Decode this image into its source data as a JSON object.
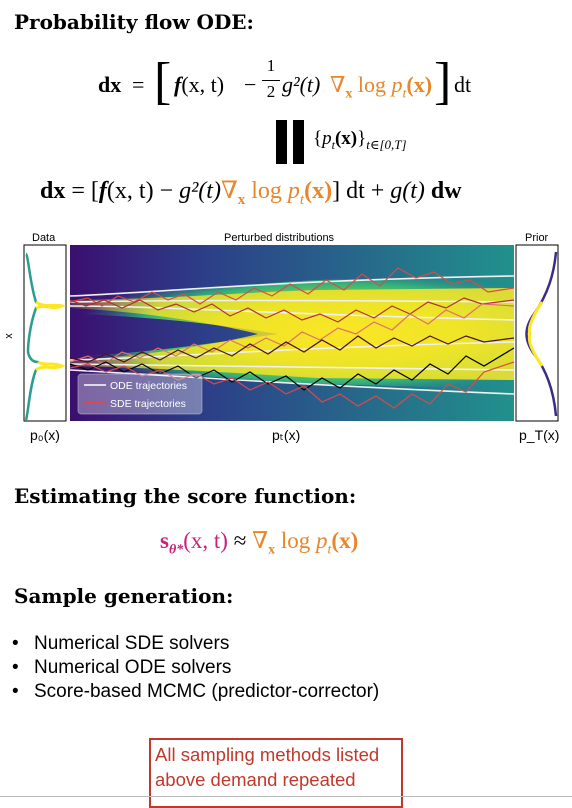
{
  "heading_ode": "Probability flow ODE:",
  "eq1": {
    "lhs": "dx",
    "eq": "=",
    "f": "f",
    "args": "(x, t)",
    "minus": "−",
    "half_num": "1",
    "half_den": "2",
    "g2": "g²(t)",
    "grad": "∇",
    "grad_sub": "x",
    "log": " log ",
    "p": "p",
    "p_sub": "t",
    "p_arg": "(x)",
    "dt": "dt"
  },
  "set_label": {
    "open": "{",
    "p": "p",
    "sub": "t",
    "arg": "(x)",
    "close": "}",
    "range": "t∈[0,T]"
  },
  "eq2": {
    "lhs": "dx",
    "eq": "=",
    "f": "f",
    "args": "(x, t)",
    "minus": "−",
    "g2": "g²(t)",
    "grad": "∇",
    "grad_sub": "x",
    "log": " log ",
    "p": "p",
    "p_sub": "t",
    "p_arg": "(x)",
    "dt": "dt +",
    "g": "g(t)",
    "dw": "dw"
  },
  "figure": {
    "label_data": "Data",
    "label_perturbed": "Perturbed distributions",
    "label_prior": "Prior",
    "axis_x": "x",
    "legend": [
      "ODE trajectories",
      "SDE trajectories"
    ],
    "legend_colors": [
      "#dcdcdc",
      "#d94a4a"
    ],
    "caption_p0": "p₀(x)",
    "caption_pt": "pₜ(x)",
    "caption_pT": "p_T(x)"
  },
  "heading_score": "Estimating the score function:",
  "score_eq": {
    "s": "s",
    "theta": "θ*",
    "args": "(x, t)",
    "approx": " ≈ ",
    "grad": "∇",
    "grad_sub": "x",
    "log": " log ",
    "p": "p",
    "p_sub": "t",
    "p_arg": "(x)"
  },
  "heading_sample": "Sample generation:",
  "bullets": [
    "Numerical SDE solvers",
    "Numerical ODE solvers",
    "Score-based MCMC (predictor-corrector)"
  ],
  "note_box": {
    "line1": "All sampling methods listed",
    "line2": "above demand repeated",
    "border_color": "#c0392b",
    "text_color": "#c0392b"
  }
}
